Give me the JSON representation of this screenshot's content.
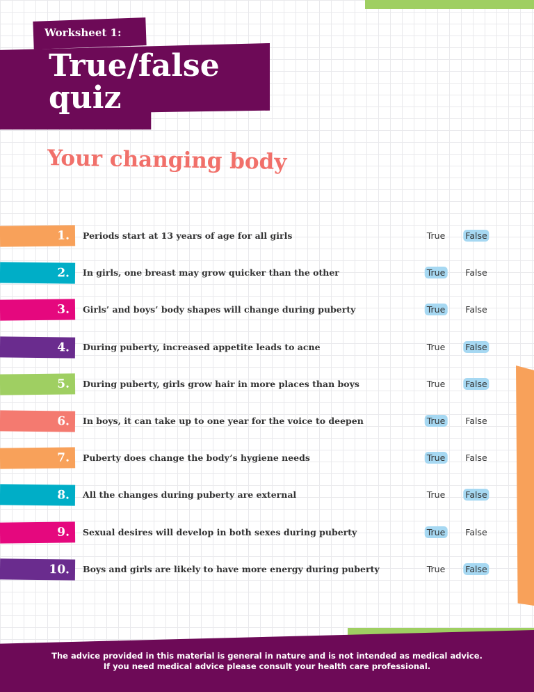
{
  "header": {
    "label": "Worksheet 1:",
    "title_lines": [
      "True/false",
      "quiz"
    ]
  },
  "subtitle": "Your changing body",
  "questions": [
    {
      "number": "1.",
      "text": "Periods start at 13 years of age for all girls",
      "options": [
        "True",
        "False"
      ],
      "answer": 1,
      "color": "#f8a15a"
    },
    {
      "number": "2.",
      "text": "In girls, one breast may grow quicker than the other",
      "options": [
        "True",
        "False"
      ],
      "answer": 0,
      "color": "#00aec7"
    },
    {
      "number": "3.",
      "text": "Girls’ and boys’ body shapes will change during puberty",
      "options": [
        "True",
        "False"
      ],
      "answer": 0,
      "color": "#e5087e"
    },
    {
      "number": "4.",
      "text": "During puberty, increased appetite leads to acne",
      "options": [
        "True",
        "False"
      ],
      "answer": 1,
      "color": "#6a2c8e"
    },
    {
      "number": "5.",
      "text": "During puberty, girls grow hair in more places than boys",
      "options": [
        "True",
        "False"
      ],
      "answer": 1,
      "color": "#9fcf62"
    },
    {
      "number": "6.",
      "text": "In boys, it can take up to one year for the voice to deepen",
      "options": [
        "True",
        "False"
      ],
      "answer": 0,
      "color": "#f47a70"
    },
    {
      "number": "7.",
      "text": "Puberty does change the body’s hygiene needs",
      "options": [
        "True",
        "False"
      ],
      "answer": 0,
      "color": "#f8a15a"
    },
    {
      "number": "8.",
      "text": "All the changes during puberty are external",
      "options": [
        "True",
        "False"
      ],
      "answer": 1,
      "color": "#00aec7"
    },
    {
      "number": "9.",
      "text": "Sexual desires will develop in both sexes during puberty",
      "options": [
        "True",
        "False"
      ],
      "answer": 0,
      "color": "#e5087e"
    },
    {
      "number": "10.",
      "text": "Boys and girls are likely to have more energy during puberty",
      "options": [
        "True",
        "False"
      ],
      "answer": 1,
      "color": "#6a2c8e"
    }
  ],
  "footer": [
    "The advice provided in this material is general in nature and is not intended as medical advice.",
    "If you need medical advice please consult your health care professional."
  ]
}
